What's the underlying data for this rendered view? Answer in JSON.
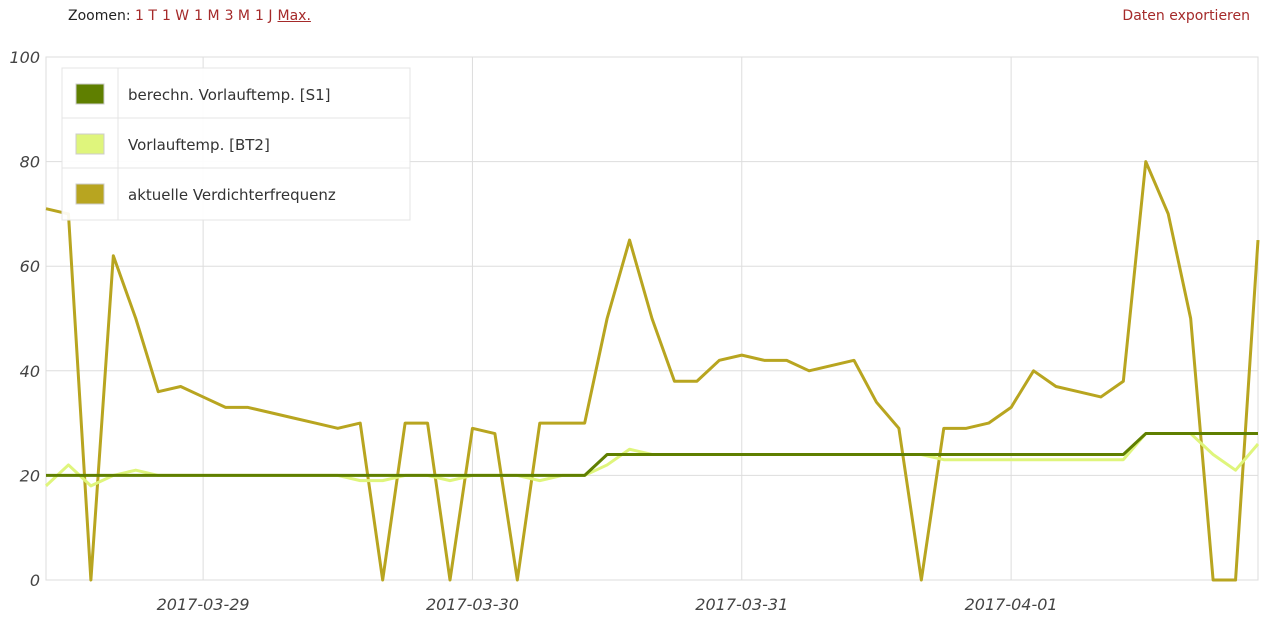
{
  "ui": {
    "zoom_label": "Zoomen:",
    "zoom_options": [
      "1 T",
      "1 W",
      "1 M",
      "3 M",
      "1 J",
      "Max."
    ],
    "export": "Daten exportieren"
  },
  "chart_data": {
    "type": "line",
    "x": [
      null,
      null,
      null,
      null,
      null,
      null,
      null,
      "2017-03-29",
      null,
      null,
      null,
      null,
      null,
      null,
      null,
      null,
      null,
      null,
      null,
      "2017-03-30",
      null,
      null,
      null,
      null,
      null,
      null,
      null,
      null,
      null,
      null,
      null,
      "2017-03-31",
      null,
      null,
      null,
      null,
      null,
      null,
      null,
      null,
      null,
      null,
      null,
      "2017-04-01",
      null,
      null,
      null,
      null,
      null,
      null,
      null,
      null,
      null,
      null,
      null
    ],
    "series": [
      {
        "name": "berechn. Vorlauftemp. [S1]",
        "color": "#5f7f00",
        "values": [
          20,
          20,
          20,
          20,
          20,
          20,
          20,
          20,
          20,
          20,
          20,
          20,
          20,
          20,
          20,
          20,
          20,
          20,
          20,
          20,
          20,
          20,
          20,
          20,
          20,
          24,
          24,
          24,
          24,
          24,
          24,
          24,
          24,
          24,
          24,
          24,
          24,
          24,
          24,
          24,
          24,
          24,
          24,
          24,
          24,
          24,
          24,
          24,
          24,
          28,
          28,
          28,
          28,
          28,
          28
        ]
      },
      {
        "name": "Vorlauftemp. [BT2]",
        "color": "#dff57c",
        "values": [
          18,
          22,
          18,
          20,
          21,
          20,
          20,
          20,
          20,
          20,
          20,
          20,
          20,
          20,
          19,
          19,
          20,
          20,
          19,
          20,
          20,
          20,
          19,
          20,
          20,
          22,
          25,
          24,
          24,
          24,
          24,
          24,
          24,
          24,
          24,
          24,
          24,
          24,
          24,
          24,
          23,
          23,
          23,
          23,
          23,
          23,
          23,
          23,
          23,
          28,
          28,
          28,
          24,
          21,
          26
        ]
      },
      {
        "name": "aktuelle Verdichterfrequenz",
        "color": "#b8a520",
        "values": [
          71,
          70,
          0,
          62,
          50,
          36,
          37,
          35,
          33,
          33,
          32,
          31,
          30,
          29,
          30,
          0,
          30,
          30,
          0,
          29,
          28,
          0,
          30,
          30,
          30,
          50,
          65,
          50,
          38,
          38,
          42,
          43,
          42,
          42,
          40,
          41,
          42,
          34,
          29,
          0,
          29,
          29,
          30,
          33,
          40,
          37,
          36,
          35,
          38,
          80,
          70,
          50,
          0,
          0,
          65
        ]
      }
    ],
    "ylim": [
      0,
      100
    ],
    "yticks": [
      0,
      20,
      40,
      60,
      80,
      100
    ],
    "grid": true,
    "legend": "top-left"
  }
}
